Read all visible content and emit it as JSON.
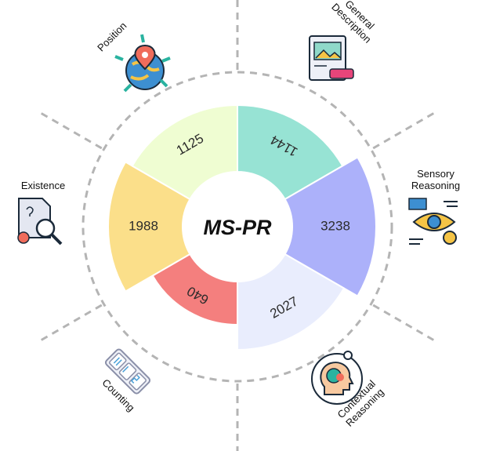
{
  "chart_data": {
    "type": "pie",
    "title": "MS-PR",
    "categories": [
      "General Description",
      "Sensory Reasoning",
      "Contextual Reasoning",
      "Counting",
      "Existence",
      "Position"
    ],
    "values": [
      1144,
      3238,
      2027,
      640,
      1988,
      1125
    ],
    "colors": [
      "#97e3d4",
      "#acb1fa",
      "#e9edfd",
      "#f47f7e",
      "#fbdf8a",
      "#effdd2"
    ],
    "legend": "labels around the ring with icons"
  },
  "icons": {
    "General Description": "image-description-icon",
    "Sensory Reasoning": "eye-analysis-icon",
    "Contextual Reasoning": "head-puzzle-icon",
    "Counting": "counter-icon",
    "Existence": "document-search-icon",
    "Position": "globe-location-icon"
  }
}
